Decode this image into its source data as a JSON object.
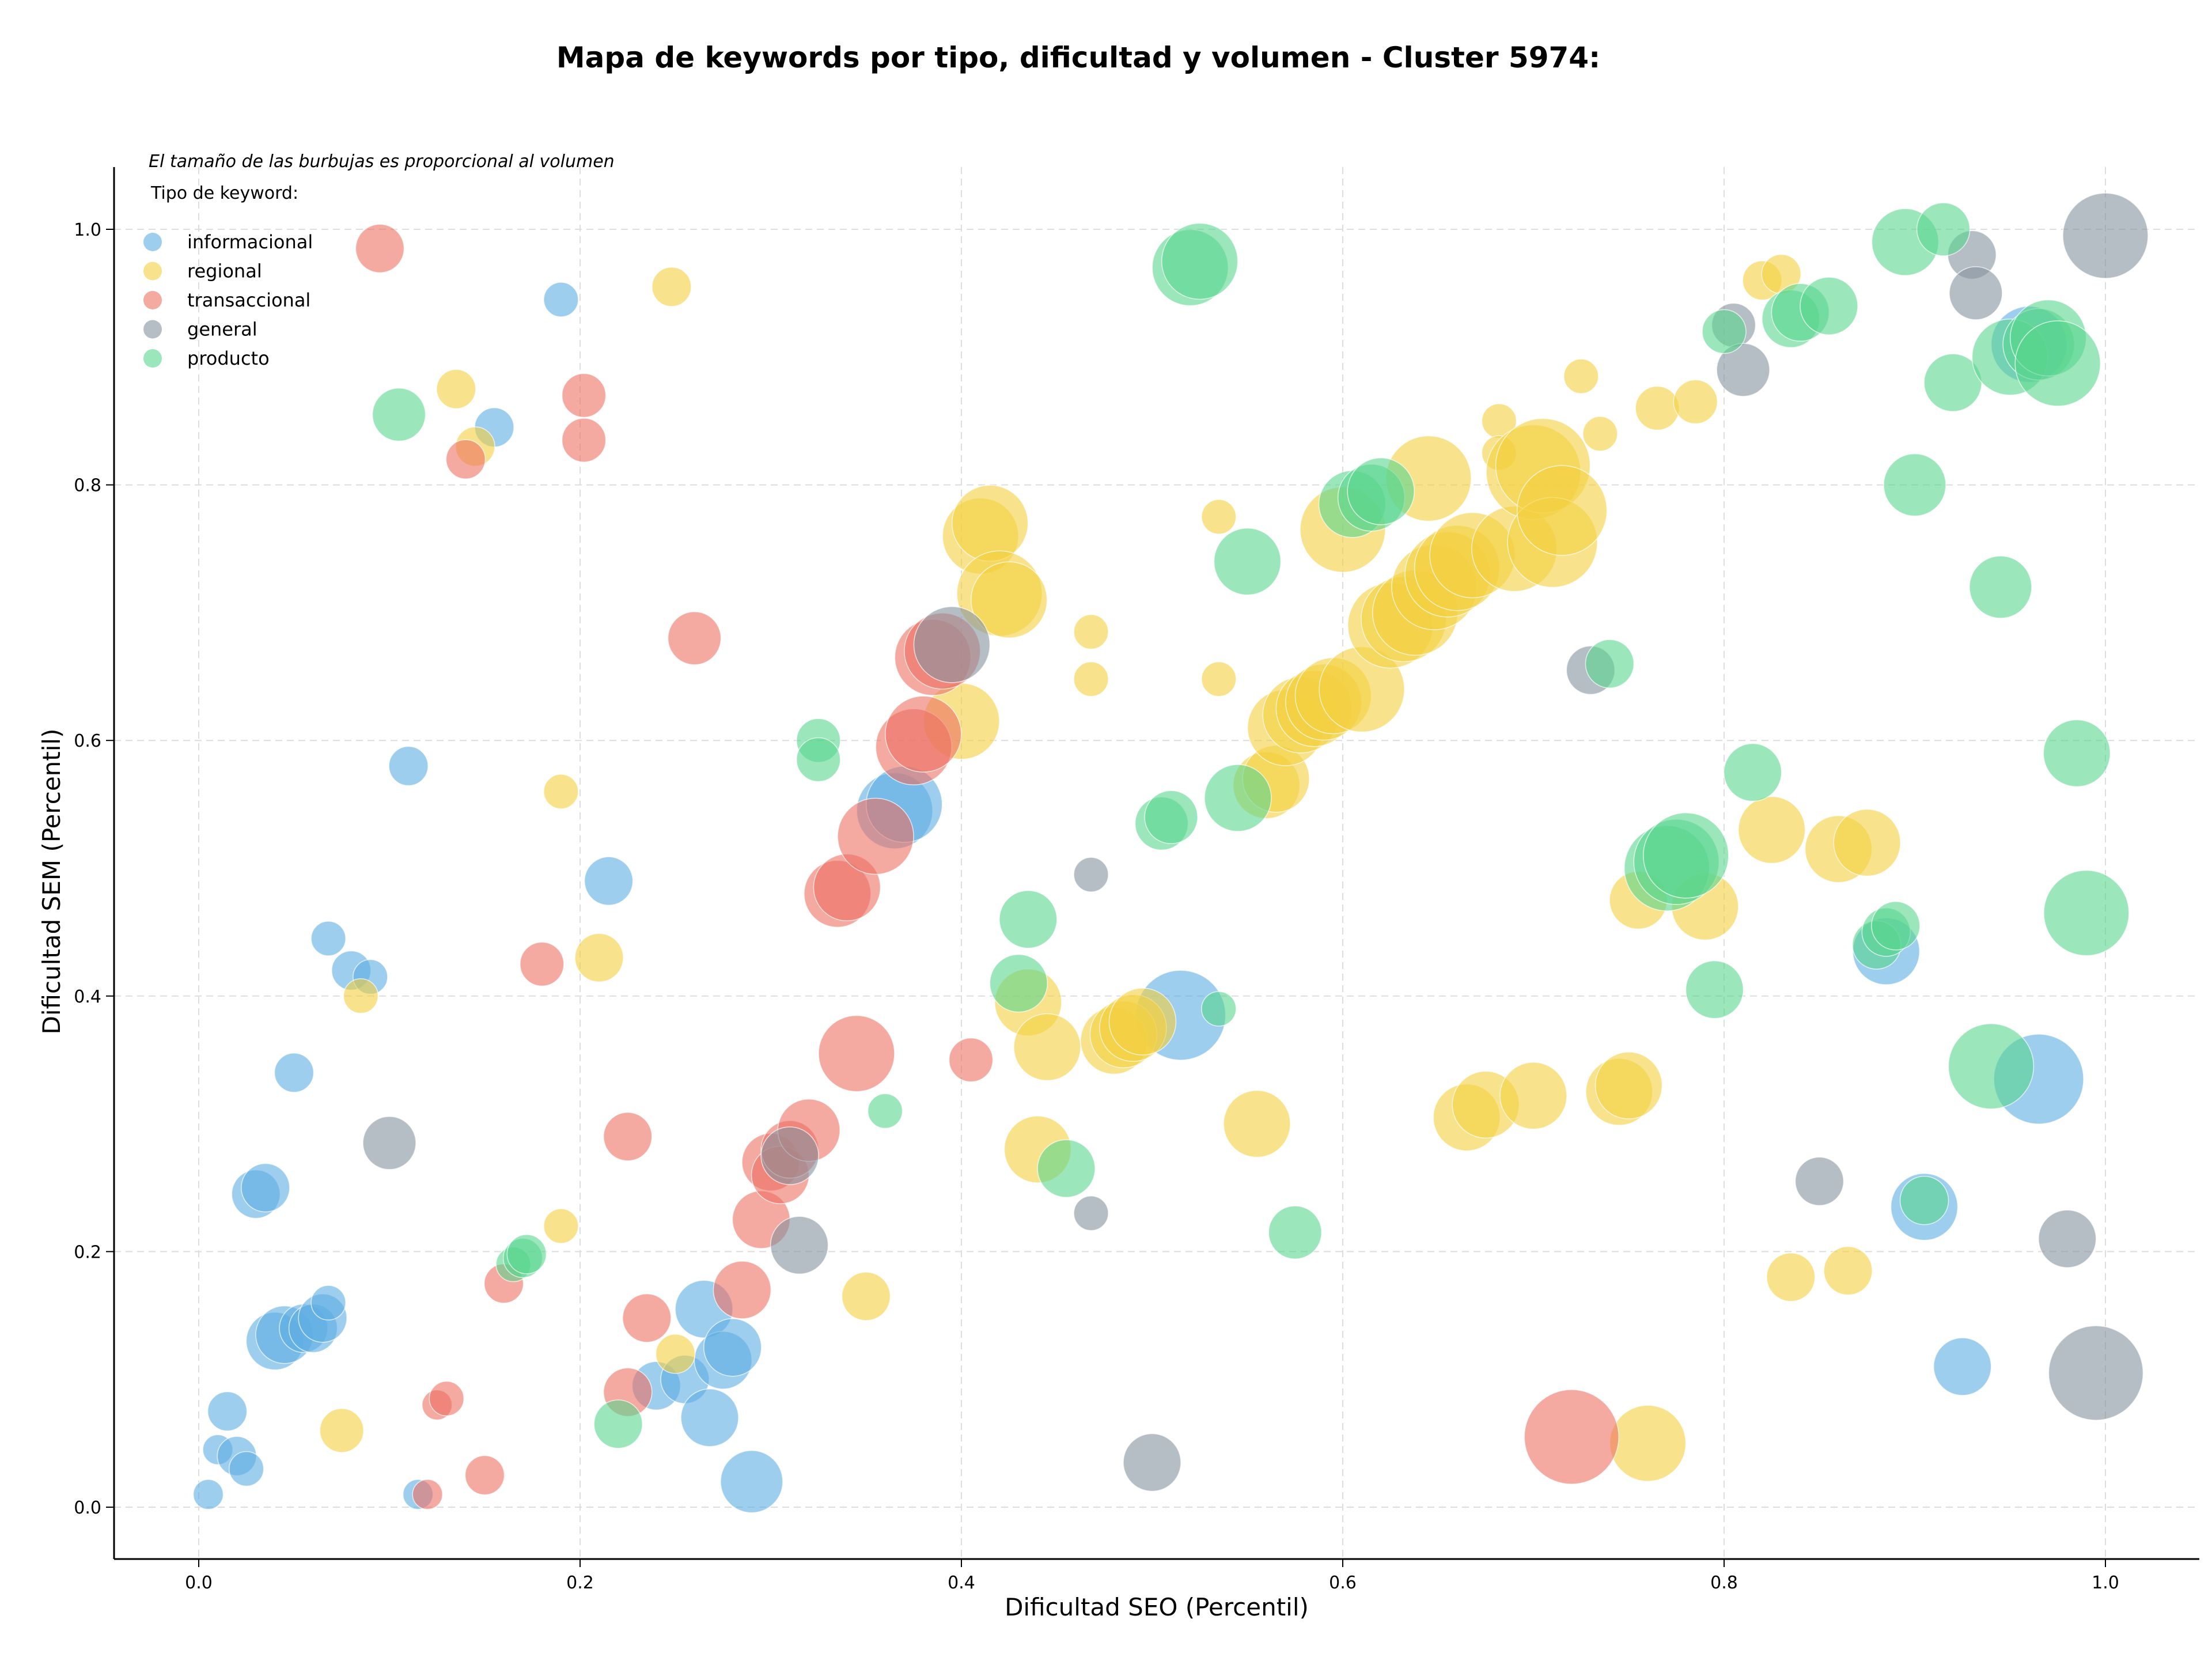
{
  "chart_data": {
    "type": "scatter",
    "title": "Mapa de keywords por tipo, dificultad y volumen - Cluster 5974:",
    "xlabel": "Dificultad SEO (Percentil)",
    "ylabel": "Dificultad SEM (Percentil)",
    "xlim": [
      -0.044,
      1.05
    ],
    "ylim": [
      -0.04,
      1.05
    ],
    "xticks": [
      "0.0",
      "0.2",
      "0.4",
      "0.6",
      "0.8",
      "1.0"
    ],
    "yticks": [
      "0.0",
      "0.2",
      "0.4",
      "0.6",
      "0.8",
      "1.0"
    ],
    "grid": true,
    "legend_position": "top-left",
    "legend_title": "Tipo de keyword:",
    "annotation": "El tamaño de las burbujas es proporcional al volumen",
    "series": [
      {
        "name": "informacional",
        "color": "#5DADE2",
        "points": [
          [
            0.005,
            0.01,
            1
          ],
          [
            0.01,
            0.045,
            1
          ],
          [
            0.015,
            0.075,
            2
          ],
          [
            0.02,
            0.04,
            2
          ],
          [
            0.025,
            0.03,
            1.5
          ],
          [
            0.03,
            0.245,
            3
          ],
          [
            0.035,
            0.25,
            3
          ],
          [
            0.04,
            0.13,
            4
          ],
          [
            0.045,
            0.135,
            4
          ],
          [
            0.055,
            0.14,
            3
          ],
          [
            0.06,
            0.14,
            3
          ],
          [
            0.065,
            0.148,
            3
          ],
          [
            0.068,
            0.16,
            1.5
          ],
          [
            0.05,
            0.34,
            2
          ],
          [
            0.068,
            0.445,
            1.5
          ],
          [
            0.08,
            0.42,
            2
          ],
          [
            0.09,
            0.415,
            1.5
          ],
          [
            0.11,
            0.58,
            2
          ],
          [
            0.115,
            0.01,
            1
          ],
          [
            0.155,
            0.845,
            2
          ],
          [
            0.19,
            0.945,
            1.5
          ],
          [
            0.215,
            0.49,
            3
          ],
          [
            0.24,
            0.095,
            3
          ],
          [
            0.255,
            0.1,
            3
          ],
          [
            0.268,
            0.07,
            4
          ],
          [
            0.265,
            0.155,
            4
          ],
          [
            0.275,
            0.115,
            4
          ],
          [
            0.28,
            0.125,
            4
          ],
          [
            0.29,
            0.02,
            4.5
          ],
          [
            0.365,
            0.545,
            6
          ],
          [
            0.37,
            0.55,
            6
          ],
          [
            0.515,
            0.385,
            7.5
          ],
          [
            0.885,
            0.435,
            5
          ],
          [
            0.905,
            0.235,
            5
          ],
          [
            0.925,
            0.11,
            4
          ],
          [
            0.965,
            0.335,
            7.5
          ],
          [
            0.96,
            0.91,
            6
          ]
        ]
      },
      {
        "name": "regional",
        "color": "#F4D03F",
        "points": [
          [
            0.075,
            0.06,
            2.5
          ],
          [
            0.085,
            0.4,
            1.5
          ],
          [
            0.135,
            0.875,
            2
          ],
          [
            0.145,
            0.83,
            2
          ],
          [
            0.19,
            0.56,
            1.5
          ],
          [
            0.19,
            0.22,
            1.5
          ],
          [
            0.21,
            0.43,
            3
          ],
          [
            0.248,
            0.955,
            2
          ],
          [
            0.25,
            0.12,
            2
          ],
          [
            0.35,
            0.165,
            3
          ],
          [
            0.4,
            0.615,
            6
          ],
          [
            0.41,
            0.76,
            6
          ],
          [
            0.415,
            0.77,
            6
          ],
          [
            0.42,
            0.715,
            7
          ],
          [
            0.425,
            0.71,
            6
          ],
          [
            0.435,
            0.395,
            5
          ],
          [
            0.44,
            0.28,
            5
          ],
          [
            0.445,
            0.36,
            5
          ],
          [
            0.468,
            0.685,
            1.5
          ],
          [
            0.468,
            0.648,
            1.5
          ],
          [
            0.48,
            0.365,
            5
          ],
          [
            0.485,
            0.37,
            5
          ],
          [
            0.49,
            0.375,
            5
          ],
          [
            0.495,
            0.38,
            5
          ],
          [
            0.535,
            0.775,
            1.5
          ],
          [
            0.535,
            0.648,
            1.5
          ],
          [
            0.555,
            0.3,
            5
          ],
          [
            0.56,
            0.565,
            5
          ],
          [
            0.565,
            0.57,
            5
          ],
          [
            0.57,
            0.61,
            6
          ],
          [
            0.578,
            0.62,
            6
          ],
          [
            0.585,
            0.625,
            6
          ],
          [
            0.59,
            0.63,
            6
          ],
          [
            0.595,
            0.635,
            6
          ],
          [
            0.6,
            0.765,
            7
          ],
          [
            0.61,
            0.64,
            7
          ],
          [
            0.625,
            0.69,
            7
          ],
          [
            0.632,
            0.695,
            7
          ],
          [
            0.638,
            0.7,
            7
          ],
          [
            0.645,
            0.805,
            7
          ],
          [
            0.648,
            0.72,
            7
          ],
          [
            0.655,
            0.73,
            7
          ],
          [
            0.66,
            0.735,
            7
          ],
          [
            0.668,
            0.745,
            7
          ],
          [
            0.665,
            0.305,
            5
          ],
          [
            0.675,
            0.315,
            5
          ],
          [
            0.682,
            0.85,
            1.5
          ],
          [
            0.682,
            0.825,
            1.5
          ],
          [
            0.69,
            0.75,
            7
          ],
          [
            0.7,
            0.81,
            8
          ],
          [
            0.705,
            0.815,
            8
          ],
          [
            0.7,
            0.322,
            5
          ],
          [
            0.71,
            0.755,
            7.5
          ],
          [
            0.715,
            0.78,
            7.5
          ],
          [
            0.725,
            0.885,
            1.5
          ],
          [
            0.735,
            0.84,
            1.5
          ],
          [
            0.745,
            0.325,
            5
          ],
          [
            0.75,
            0.33,
            5
          ],
          [
            0.755,
            0.475,
            4
          ],
          [
            0.76,
            0.05,
            6
          ],
          [
            0.765,
            0.86,
            2.5
          ],
          [
            0.785,
            0.865,
            2.5
          ],
          [
            0.79,
            0.47,
            5
          ],
          [
            0.82,
            0.96,
            2
          ],
          [
            0.83,
            0.965,
            2
          ],
          [
            0.825,
            0.53,
            5
          ],
          [
            0.835,
            0.18,
            3
          ],
          [
            0.86,
            0.515,
            5
          ],
          [
            0.865,
            0.185,
            3
          ],
          [
            0.875,
            0.52,
            5
          ]
        ]
      },
      {
        "name": "transaccional",
        "color": "#EC7063",
        "points": [
          [
            0.095,
            0.985,
            3
          ],
          [
            0.12,
            0.01,
            1
          ],
          [
            0.125,
            0.08,
            1
          ],
          [
            0.13,
            0.085,
            1.5
          ],
          [
            0.14,
            0.82,
            2
          ],
          [
            0.15,
            0.025,
            2
          ],
          [
            0.16,
            0.175,
            2
          ],
          [
            0.18,
            0.425,
            2.5
          ],
          [
            0.202,
            0.87,
            2.5
          ],
          [
            0.202,
            0.835,
            2.5
          ],
          [
            0.225,
            0.29,
            3
          ],
          [
            0.225,
            0.09,
            3
          ],
          [
            0.235,
            0.148,
            3
          ],
          [
            0.26,
            0.68,
            3.5
          ],
          [
            0.285,
            0.17,
            4
          ],
          [
            0.295,
            0.225,
            4
          ],
          [
            0.3,
            0.27,
            4
          ],
          [
            0.305,
            0.26,
            4
          ],
          [
            0.31,
            0.28,
            4
          ],
          [
            0.32,
            0.295,
            4.5
          ],
          [
            0.335,
            0.48,
            5
          ],
          [
            0.34,
            0.485,
            5
          ],
          [
            0.345,
            0.355,
            6
          ],
          [
            0.355,
            0.525,
            6
          ],
          [
            0.375,
            0.595,
            6
          ],
          [
            0.38,
            0.605,
            6
          ],
          [
            0.385,
            0.665,
            6
          ],
          [
            0.39,
            0.67,
            6
          ],
          [
            0.405,
            0.35,
            2.5
          ],
          [
            0.72,
            0.055,
            8
          ]
        ]
      },
      {
        "name": "general",
        "color": "#85929E",
        "points": [
          [
            0.1,
            0.285,
            3.5
          ],
          [
            0.31,
            0.275,
            4
          ],
          [
            0.315,
            0.205,
            4
          ],
          [
            0.395,
            0.675,
            6
          ],
          [
            0.468,
            0.495,
            1.5
          ],
          [
            0.468,
            0.23,
            1.5
          ],
          [
            0.5,
            0.035,
            4
          ],
          [
            0.73,
            0.655,
            3
          ],
          [
            0.805,
            0.925,
            2.5
          ],
          [
            0.81,
            0.89,
            3.5
          ],
          [
            0.85,
            0.255,
            3
          ],
          [
            0.93,
            0.98,
            3
          ],
          [
            0.932,
            0.95,
            3.5
          ],
          [
            0.98,
            0.21,
            4
          ],
          [
            0.995,
            0.105,
            8
          ],
          [
            1.0,
            0.995,
            7
          ]
        ]
      },
      {
        "name": "producto",
        "color": "#58D68D",
        "points": [
          [
            0.105,
            0.855,
            3.5
          ],
          [
            0.165,
            0.19,
            1.5
          ],
          [
            0.17,
            0.195,
            2
          ],
          [
            0.172,
            0.198,
            2
          ],
          [
            0.22,
            0.065,
            3
          ],
          [
            0.325,
            0.6,
            2.5
          ],
          [
            0.325,
            0.585,
            2.5
          ],
          [
            0.36,
            0.31,
            1.5
          ],
          [
            0.43,
            0.41,
            4
          ],
          [
            0.435,
            0.46,
            4
          ],
          [
            0.455,
            0.265,
            4
          ],
          [
            0.505,
            0.535,
            3.5
          ],
          [
            0.51,
            0.54,
            3.5
          ],
          [
            0.52,
            0.97,
            6
          ],
          [
            0.525,
            0.975,
            6
          ],
          [
            0.535,
            0.39,
            1.5
          ],
          [
            0.545,
            0.555,
            5
          ],
          [
            0.55,
            0.74,
            5
          ],
          [
            0.575,
            0.215,
            3.5
          ],
          [
            0.605,
            0.785,
            5
          ],
          [
            0.615,
            0.79,
            5
          ],
          [
            0.62,
            0.795,
            5
          ],
          [
            0.74,
            0.66,
            3
          ],
          [
            0.77,
            0.5,
            7
          ],
          [
            0.775,
            0.505,
            7
          ],
          [
            0.78,
            0.51,
            7
          ],
          [
            0.795,
            0.405,
            4
          ],
          [
            0.8,
            0.92,
            2.5
          ],
          [
            0.815,
            0.575,
            4
          ],
          [
            0.835,
            0.93,
            4
          ],
          [
            0.84,
            0.935,
            4
          ],
          [
            0.855,
            0.94,
            4
          ],
          [
            0.88,
            0.44,
            3
          ],
          [
            0.885,
            0.45,
            3
          ],
          [
            0.89,
            0.455,
            3
          ],
          [
            0.895,
            0.99,
            5
          ],
          [
            0.9,
            0.8,
            4.5
          ],
          [
            0.905,
            0.24,
            3
          ],
          [
            0.915,
            1.0,
            3.5
          ],
          [
            0.92,
            0.88,
            4
          ],
          [
            0.94,
            0.345,
            7
          ],
          [
            0.945,
            0.72,
            4.5
          ],
          [
            0.95,
            0.9,
            6
          ],
          [
            0.965,
            0.91,
            5.5
          ],
          [
            0.97,
            0.915,
            6
          ],
          [
            0.975,
            0.895,
            7
          ],
          [
            0.985,
            0.59,
            5
          ],
          [
            0.99,
            0.465,
            7
          ]
        ]
      }
    ]
  }
}
